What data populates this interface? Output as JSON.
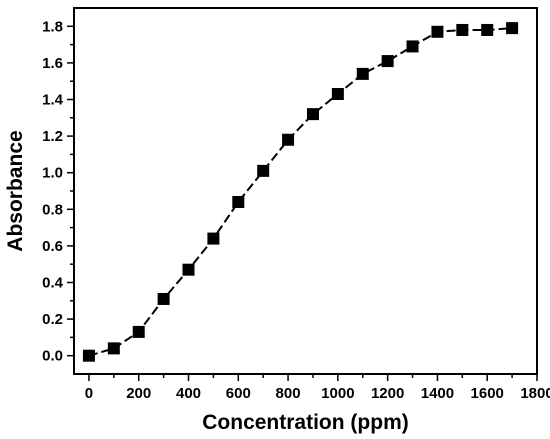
{
  "chart_data": {
    "type": "line",
    "title": "",
    "xlabel": "Concentration (ppm)",
    "ylabel": "Absorbance",
    "xlim": [
      -60,
      1800
    ],
    "ylim": [
      -0.1,
      1.9
    ],
    "xticks": [
      0,
      200,
      400,
      600,
      800,
      1000,
      1200,
      1400,
      1600,
      1800
    ],
    "yticks": [
      0.0,
      0.2,
      0.4,
      0.6,
      0.8,
      1.0,
      1.2,
      1.4,
      1.6,
      1.8
    ],
    "tick_labels_x": [
      "0",
      "200",
      "400",
      "600",
      "800",
      "1000",
      "1200",
      "1400",
      "1600",
      "1800"
    ],
    "tick_labels_y": [
      "0.0",
      "0.2",
      "0.4",
      "0.6",
      "0.8",
      "1.0",
      "1.2",
      "1.4",
      "1.6",
      "1.8"
    ],
    "grid": false,
    "series": [
      {
        "marker": "filled-square",
        "line_style": "dashed",
        "color": "#000000",
        "x": [
          0,
          100,
          200,
          300,
          400,
          500,
          600,
          700,
          800,
          900,
          1000,
          1100,
          1200,
          1300,
          1400,
          1500,
          1600,
          1700
        ],
        "y": [
          0.0,
          0.04,
          0.13,
          0.31,
          0.47,
          0.64,
          0.84,
          1.01,
          1.18,
          1.32,
          1.43,
          1.54,
          1.61,
          1.69,
          1.77,
          1.78,
          1.78,
          1.79
        ]
      }
    ]
  }
}
